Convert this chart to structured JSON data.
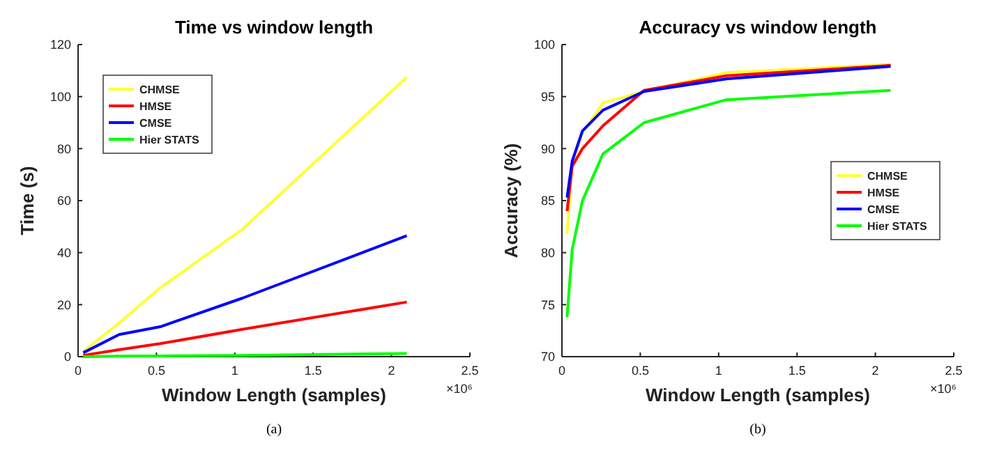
{
  "chart_data": [
    {
      "type": "line",
      "title": "Time vs window length",
      "xlabel": "Window Length (samples)",
      "ylabel": "Time (s)",
      "xlim": [
        0,
        2.5
      ],
      "xticks": [
        0,
        0.5,
        1,
        1.5,
        2,
        2.5
      ],
      "ylim": [
        0,
        120
      ],
      "yticks": [
        0,
        20,
        40,
        60,
        80,
        100,
        120
      ],
      "x": [
        0.032768,
        0.262144,
        0.524288,
        1.048576,
        2.097152
      ],
      "legend": "top left",
      "grid": false,
      "line_style": "solid",
      "annotations": [
        "×10⁶",
        "(a)"
      ],
      "series": [
        {
          "name": "CHMSE",
          "color": "#ffff33",
          "values": [
            2,
            13,
            26.5,
            49,
            107.5
          ]
        },
        {
          "name": "HMSE",
          "color": "#ff0000",
          "values": [
            0.5,
            2.7,
            5,
            10.5,
            21
          ]
        },
        {
          "name": "CMSE",
          "color": "#0000ff",
          "values": [
            1.5,
            8.5,
            11.5,
            22.5,
            46.5
          ]
        },
        {
          "name": "Hier STATS",
          "color": "#00ff00",
          "values": [
            0,
            0.2,
            0.3,
            0.5,
            1.2
          ]
        }
      ]
    },
    {
      "type": "line",
      "title": "Accuracy vs window length",
      "xlabel": "Window Length (samples)",
      "ylabel": "Accuracy (%)",
      "xlim": [
        0,
        2.5
      ],
      "xticks": [
        0,
        0.5,
        1,
        1.5,
        2,
        2.5
      ],
      "ylim": [
        70,
        100
      ],
      "yticks": [
        70,
        75,
        80,
        85,
        90,
        95,
        100
      ],
      "x": [
        0.032768,
        0.065536,
        0.131072,
        0.262144,
        0.524288,
        1.048576,
        2.097152
      ],
      "legend": "right",
      "grid": false,
      "line_style": "solid",
      "annotations": [
        "×10⁶",
        "(b)"
      ],
      "series": [
        {
          "name": "CHMSE",
          "color": "#ffff33",
          "values": [
            81.8,
            88.5,
            91.5,
            94.4,
            95.5,
            97.3,
            98.1
          ]
        },
        {
          "name": "HMSE",
          "color": "#ff0000",
          "values": [
            84,
            88.3,
            90,
            92.2,
            95.6,
            97,
            98
          ]
        },
        {
          "name": "CMSE",
          "color": "#0000ff",
          "values": [
            85.3,
            88.8,
            91.7,
            93.7,
            95.5,
            96.7,
            97.9
          ]
        },
        {
          "name": "Hier STATS",
          "color": "#00ff00",
          "values": [
            73.8,
            80.3,
            85,
            89.5,
            92.5,
            94.7,
            95.6
          ]
        }
      ]
    }
  ]
}
